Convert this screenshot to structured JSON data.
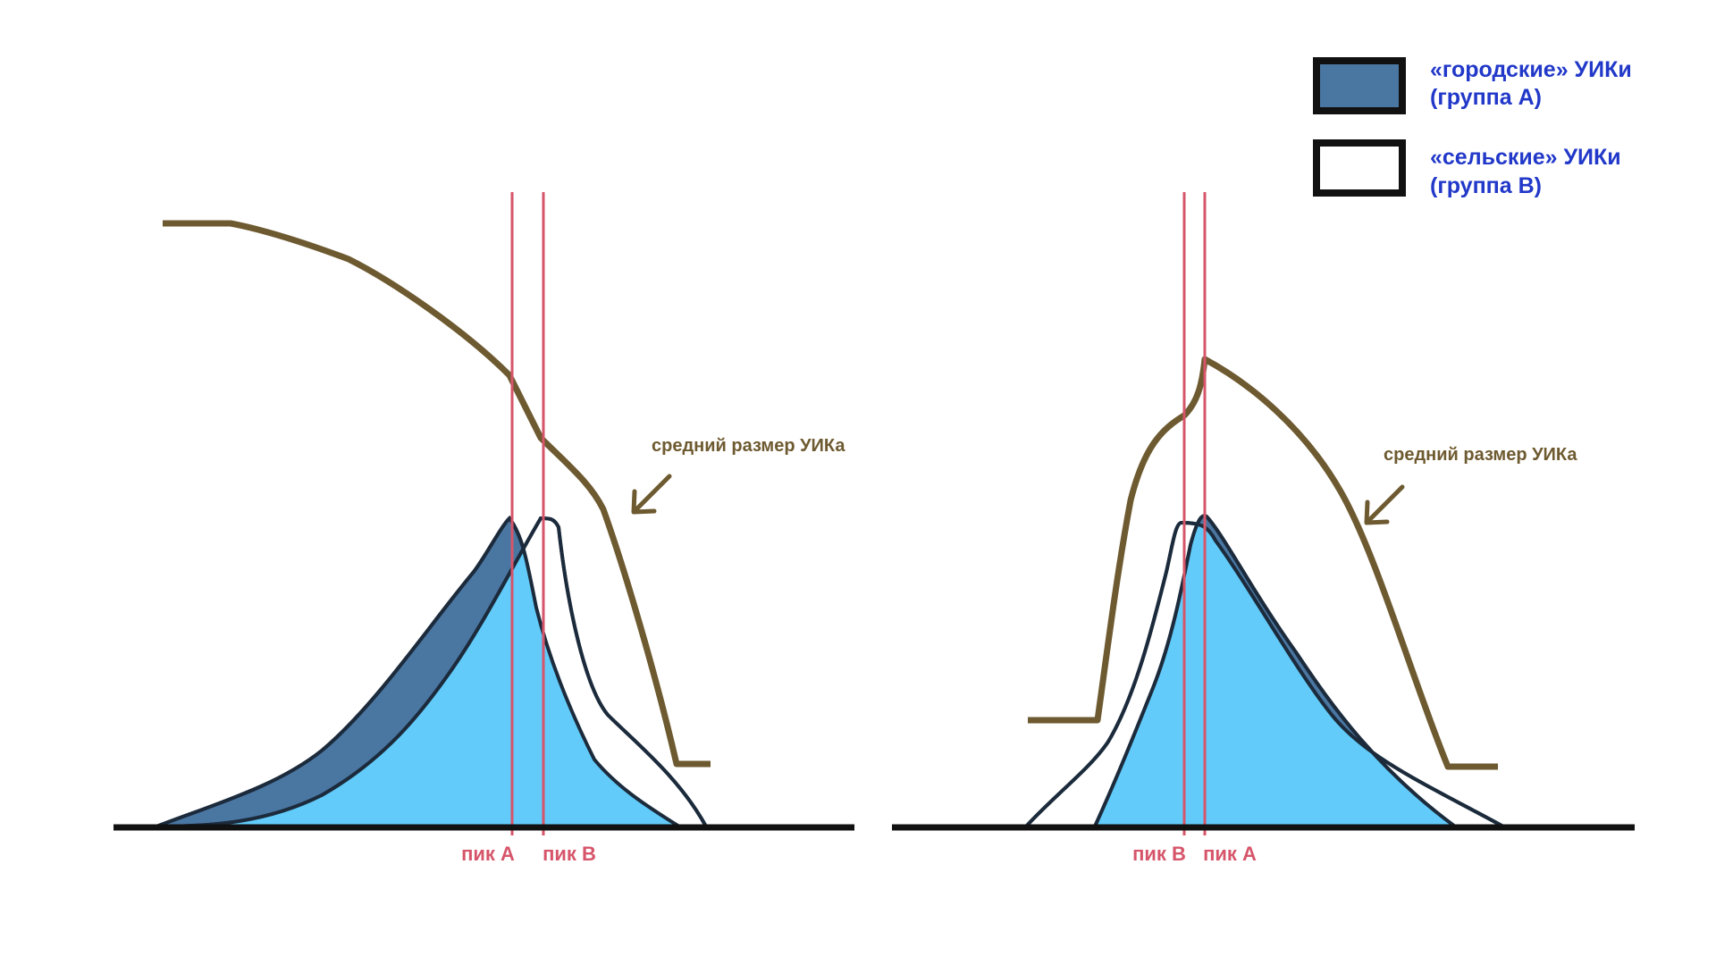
{
  "colors": {
    "urban_fill": "#4a76a2",
    "overlap_fill": "#62cbf9",
    "rural_fill": "#ffffff",
    "outline": "#1c2b3c",
    "size_curve": "#6e5a30",
    "peak_line": "#d6556a",
    "axis": "#111111",
    "legend_text": "#2138c9"
  },
  "legend": {
    "urban": {
      "line1": "«городские» УИКи",
      "line2": "(группа А)",
      "swatch_icon": "filled-rect"
    },
    "rural": {
      "line1": "«сельские» УИКи",
      "line2": "(группа B)",
      "swatch_icon": "hollow-rect"
    }
  },
  "left_panel": {
    "annotation": "средний размер УИКа",
    "peak_first": "пик А",
    "peak_second": "пик В"
  },
  "right_panel": {
    "annotation": "средний размер УИКа",
    "peak_first": "пик В",
    "peak_second": "пик А"
  }
}
